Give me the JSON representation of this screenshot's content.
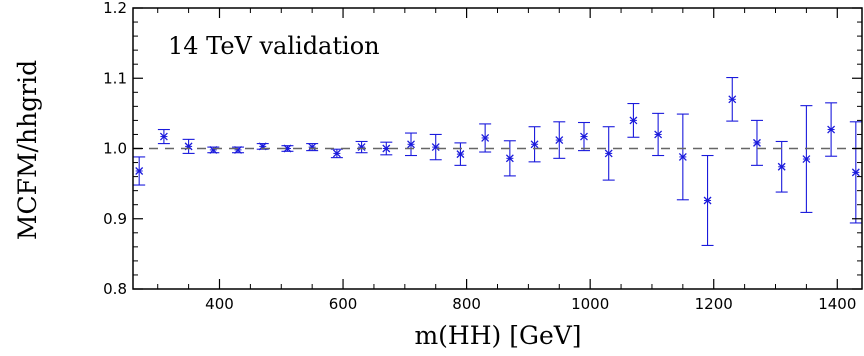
{
  "chart_data": {
    "type": "scatter",
    "annotation": "14 TeV validation",
    "xlabel": "m(HH) [GeV]",
    "ylabel": "MCFM/hhgrid",
    "xlim": [
      260,
      1440
    ],
    "ylim": [
      0.8,
      1.2
    ],
    "x_ticks": [
      400,
      600,
      800,
      1000,
      1200,
      1400
    ],
    "y_ticks": [
      0.8,
      0.9,
      1.0,
      1.1,
      1.2
    ],
    "x_tick_labels": [
      "400",
      "600",
      "800",
      "1000",
      "1200",
      "1400"
    ],
    "y_tick_labels": [
      "0.8",
      "0.9",
      "1.0",
      "1.1",
      "1.2"
    ],
    "reference_line": 1.0,
    "grid": false,
    "marker_color": "#1a1adc",
    "points": [
      {
        "x": 270,
        "y": 0.968,
        "err": 0.02
      },
      {
        "x": 310,
        "y": 1.017,
        "err": 0.01
      },
      {
        "x": 350,
        "y": 1.003,
        "err": 0.01
      },
      {
        "x": 390,
        "y": 0.998,
        "err": 0.004
      },
      {
        "x": 430,
        "y": 0.998,
        "err": 0.004
      },
      {
        "x": 470,
        "y": 1.003,
        "err": 0.004
      },
      {
        "x": 510,
        "y": 1.0,
        "err": 0.004
      },
      {
        "x": 550,
        "y": 1.002,
        "err": 0.005
      },
      {
        "x": 590,
        "y": 0.993,
        "err": 0.006
      },
      {
        "x": 630,
        "y": 1.002,
        "err": 0.008
      },
      {
        "x": 670,
        "y": 1.0,
        "err": 0.009
      },
      {
        "x": 710,
        "y": 1.006,
        "err": 0.016
      },
      {
        "x": 750,
        "y": 1.002,
        "err": 0.018
      },
      {
        "x": 790,
        "y": 0.992,
        "err": 0.016
      },
      {
        "x": 830,
        "y": 1.015,
        "err": 0.02
      },
      {
        "x": 870,
        "y": 0.986,
        "err": 0.025
      },
      {
        "x": 910,
        "y": 1.006,
        "err": 0.025
      },
      {
        "x": 950,
        "y": 1.012,
        "err": 0.026
      },
      {
        "x": 990,
        "y": 1.017,
        "err": 0.02
      },
      {
        "x": 1030,
        "y": 0.993,
        "err": 0.038
      },
      {
        "x": 1070,
        "y": 1.04,
        "err": 0.024
      },
      {
        "x": 1110,
        "y": 1.02,
        "err": 0.03
      },
      {
        "x": 1150,
        "y": 0.988,
        "err": 0.061
      },
      {
        "x": 1190,
        "y": 0.926,
        "err": 0.064
      },
      {
        "x": 1230,
        "y": 1.07,
        "err": 0.031
      },
      {
        "x": 1270,
        "y": 1.008,
        "err": 0.032
      },
      {
        "x": 1310,
        "y": 0.974,
        "err": 0.036
      },
      {
        "x": 1350,
        "y": 0.985,
        "err": 0.076
      },
      {
        "x": 1390,
        "y": 1.027,
        "err": 0.038
      },
      {
        "x": 1430,
        "y": 0.966,
        "err": 0.072
      }
    ]
  }
}
